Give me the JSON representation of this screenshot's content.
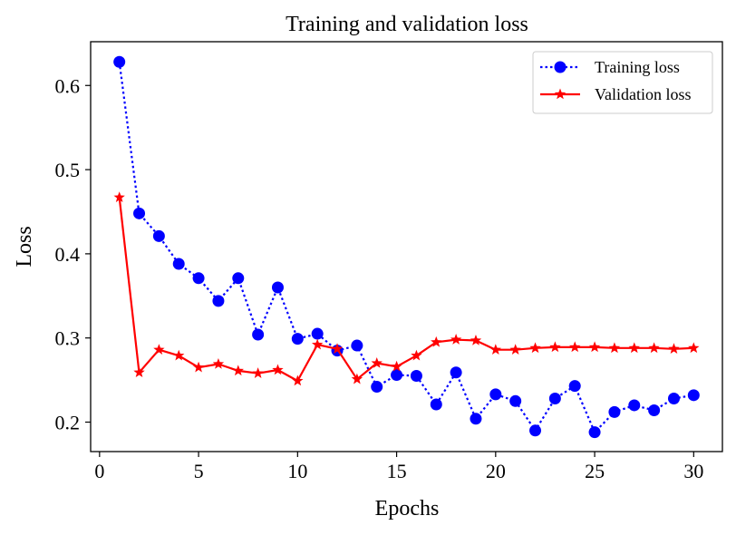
{
  "chart_data": {
    "type": "line",
    "title": "Training and validation loss",
    "xlabel": "Epochs",
    "ylabel": "Loss",
    "xlim": [
      -0.45,
      31.45
    ],
    "ylim": [
      0.165,
      0.652
    ],
    "xticks": [
      0,
      5,
      10,
      15,
      20,
      25,
      30
    ],
    "yticks": [
      0.2,
      0.3,
      0.4,
      0.5,
      0.6
    ],
    "xtick_labels": [
      "0",
      "5",
      "10",
      "15",
      "20",
      "25",
      "30"
    ],
    "ytick_labels": [
      "0.2",
      "0.3",
      "0.4",
      "0.5",
      "0.6"
    ],
    "grid": false,
    "legend_position": "top-right",
    "x": [
      1,
      2,
      3,
      4,
      5,
      6,
      7,
      8,
      9,
      10,
      11,
      12,
      13,
      14,
      15,
      16,
      17,
      18,
      19,
      20,
      21,
      22,
      23,
      24,
      25,
      26,
      27,
      28,
      29,
      30
    ],
    "series": [
      {
        "name": "Training loss",
        "color": "#0000ff",
        "line_style": "dotted",
        "marker": "circle",
        "values": [
          0.628,
          0.448,
          0.421,
          0.388,
          0.371,
          0.344,
          0.371,
          0.304,
          0.36,
          0.299,
          0.305,
          0.285,
          0.291,
          0.242,
          0.256,
          0.255,
          0.221,
          0.259,
          0.204,
          0.233,
          0.225,
          0.19,
          0.228,
          0.243,
          0.188,
          0.212,
          0.22,
          0.214,
          0.228,
          0.232
        ]
      },
      {
        "name": "Validation loss",
        "color": "#ff0000",
        "line_style": "solid",
        "marker": "star",
        "values": [
          0.467,
          0.259,
          0.286,
          0.279,
          0.265,
          0.269,
          0.261,
          0.258,
          0.262,
          0.249,
          0.292,
          0.287,
          0.251,
          0.27,
          0.266,
          0.279,
          0.295,
          0.298,
          0.297,
          0.286,
          0.286,
          0.288,
          0.289,
          0.289,
          0.289,
          0.288,
          0.288,
          0.288,
          0.287,
          0.288
        ]
      }
    ]
  }
}
